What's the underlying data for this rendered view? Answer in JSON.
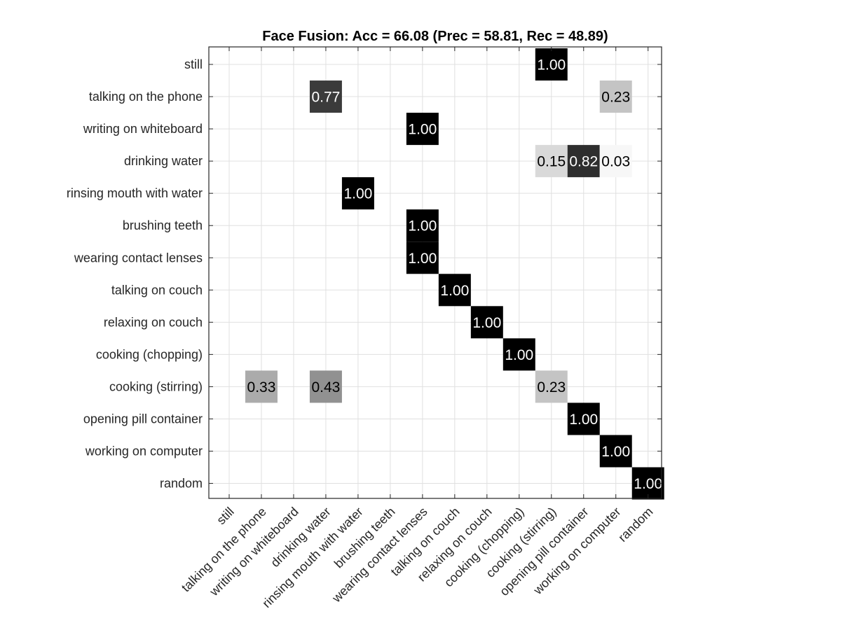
{
  "chart_data": {
    "type": "heatmap",
    "title": "Face Fusion: Acc = 66.08 (Prec = 58.81, Rec = 48.89)",
    "xlabel": "",
    "ylabel": "",
    "colormap": "gray-reversed (0 = white, 1 = black)",
    "grid": true,
    "row_labels": [
      "still",
      "talking on the phone",
      "writing on whiteboard",
      "drinking water",
      "rinsing mouth with water",
      "brushing teeth",
      "wearing contact lenses",
      "talking on couch",
      "relaxing on couch",
      "cooking (chopping)",
      "cooking (stirring)",
      "opening pill container",
      "working on computer",
      "random"
    ],
    "col_labels": [
      "still",
      "talking on the phone",
      "writing on whiteboard",
      "drinking water",
      "rinsing mouth with water",
      "brushing teeth",
      "wearing contact lenses",
      "talking on couch",
      "relaxing on couch",
      "cooking (chopping)",
      "cooking (stirring)",
      "opening pill container",
      "working on computer",
      "random"
    ],
    "cells": [
      {
        "row": 0,
        "col": 10,
        "value": 1.0,
        "label": "1.00"
      },
      {
        "row": 1,
        "col": 3,
        "value": 0.77,
        "label": "0.77"
      },
      {
        "row": 1,
        "col": 12,
        "value": 0.23,
        "label": "0.23"
      },
      {
        "row": 2,
        "col": 6,
        "value": 1.0,
        "label": "1.00"
      },
      {
        "row": 3,
        "col": 10,
        "value": 0.15,
        "label": "0.15"
      },
      {
        "row": 3,
        "col": 11,
        "value": 0.82,
        "label": "0.82"
      },
      {
        "row": 3,
        "col": 12,
        "value": 0.03,
        "label": "0.03"
      },
      {
        "row": 4,
        "col": 4,
        "value": 1.0,
        "label": "1.00"
      },
      {
        "row": 5,
        "col": 6,
        "value": 1.0,
        "label": "1.00"
      },
      {
        "row": 6,
        "col": 6,
        "value": 1.0,
        "label": "1.00"
      },
      {
        "row": 7,
        "col": 7,
        "value": 1.0,
        "label": "1.00"
      },
      {
        "row": 8,
        "col": 8,
        "value": 1.0,
        "label": "1.00"
      },
      {
        "row": 9,
        "col": 9,
        "value": 1.0,
        "label": "1.00"
      },
      {
        "row": 10,
        "col": 1,
        "value": 0.33,
        "label": "0.33"
      },
      {
        "row": 10,
        "col": 3,
        "value": 0.43,
        "label": "0.43"
      },
      {
        "row": 10,
        "col": 10,
        "value": 0.23,
        "label": "0.23"
      },
      {
        "row": 11,
        "col": 11,
        "value": 1.0,
        "label": "1.00"
      },
      {
        "row": 12,
        "col": 12,
        "value": 1.0,
        "label": "1.00"
      },
      {
        "row": 13,
        "col": 13,
        "value": 1.0,
        "label": "1.00"
      }
    ]
  }
}
